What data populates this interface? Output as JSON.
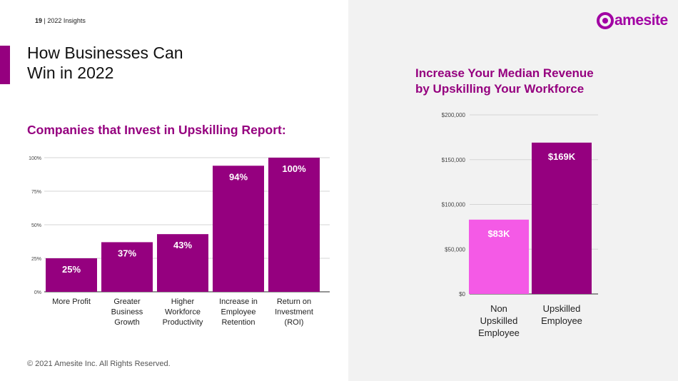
{
  "header": {
    "page_number": "19",
    "separator": " | ",
    "section": "2022 Insights"
  },
  "brand": {
    "logo_text": "amesite",
    "accent_color": "#95007f",
    "light_accent": "#f45ae6"
  },
  "title": {
    "line1": "How Businesses Can",
    "line2": "Win in 2022"
  },
  "left_section_title": "Companies that Invest in Upskilling Report:",
  "right_section_title": {
    "line1": "Increase Your Median Revenue",
    "line2": "by Upskilling Your Workforce"
  },
  "footer": "© 2021 Amesite Inc. All Rights Reserved.",
  "chart_data": [
    {
      "type": "bar",
      "title": "Companies that Invest in Upskilling Report:",
      "categories": [
        [
          "More Profit"
        ],
        [
          "Greater",
          "Business",
          "Growth"
        ],
        [
          "Higher",
          "Workforce",
          "Productivity"
        ],
        [
          "Increase in",
          "Employee",
          "Retention"
        ],
        [
          "Return on",
          "Investment",
          "(ROI)"
        ]
      ],
      "values": [
        25,
        37,
        43,
        94,
        100
      ],
      "data_labels": [
        "25%",
        "37%",
        "43%",
        "94%",
        "100%"
      ],
      "yticks": [
        0,
        25,
        50,
        75,
        100
      ],
      "ytick_labels": [
        "0%",
        "25%",
        "50%",
        "75%",
        "100%"
      ],
      "ylim": [
        0,
        100
      ],
      "color": "#95007f",
      "grid": true
    },
    {
      "type": "bar",
      "title": "Increase Your Median Revenue by Upskilling Your Workforce",
      "categories": [
        [
          "Non",
          "Upskilled",
          "Employee"
        ],
        [
          "Upskilled",
          "Employee"
        ]
      ],
      "values": [
        83000,
        169000
      ],
      "data_labels": [
        "$83K",
        "$169K"
      ],
      "yticks": [
        0,
        50000,
        100000,
        150000,
        200000
      ],
      "ytick_labels": [
        "$0",
        "$50,000",
        "$100,000",
        "$150,000",
        "$200,000"
      ],
      "ylim": [
        0,
        200000
      ],
      "colors": [
        "#f45ae6",
        "#95007f"
      ],
      "grid": true
    }
  ]
}
